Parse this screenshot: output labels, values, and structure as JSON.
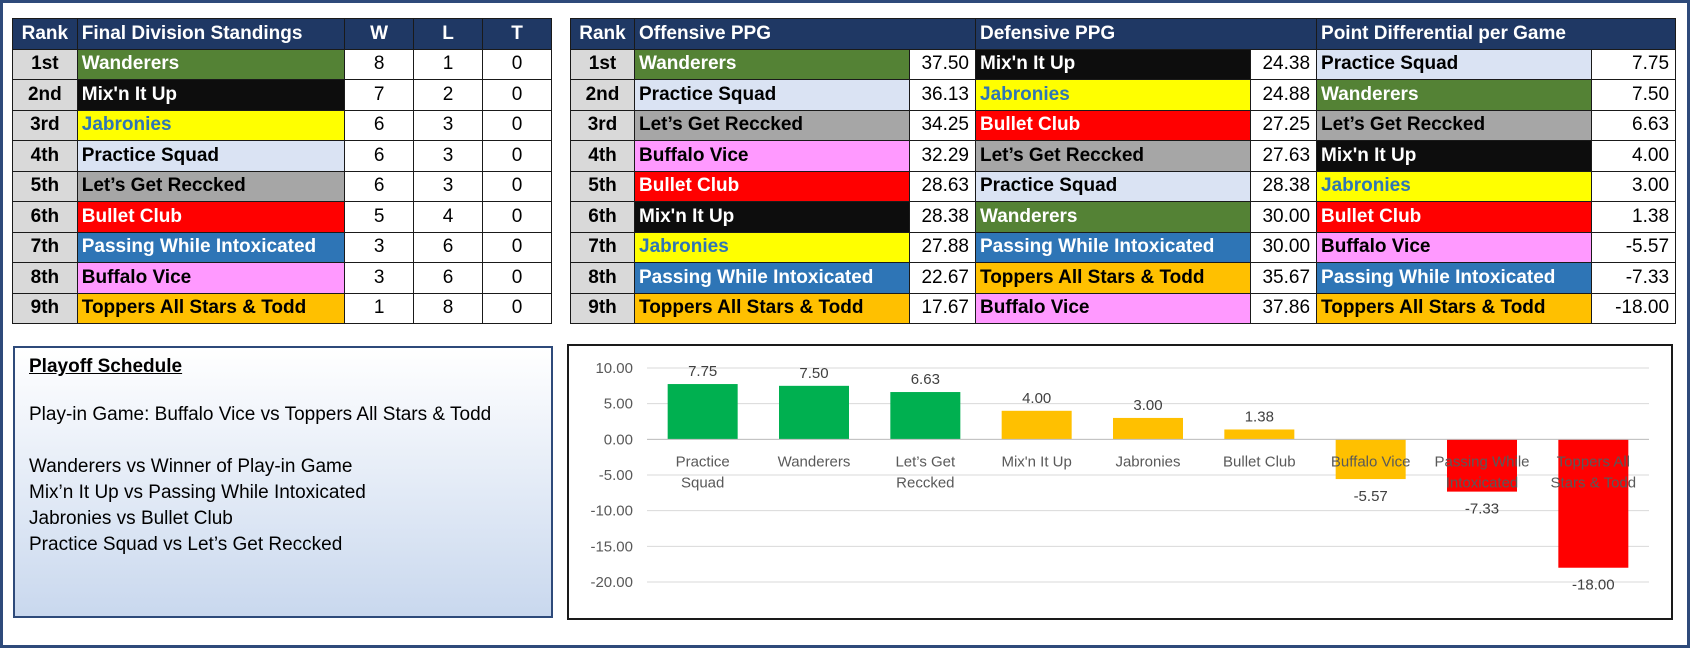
{
  "standings": {
    "headers": [
      "Rank",
      "Final Division Standings",
      "W",
      "L",
      "T"
    ],
    "rows": [
      {
        "rank": "1st",
        "team": "Wanderers",
        "w": "8",
        "l": "1",
        "t": "0",
        "bg": "#548235",
        "fg": "#ffffff"
      },
      {
        "rank": "2nd",
        "team": "Mix'n It Up",
        "w": "7",
        "l": "2",
        "t": "0",
        "bg": "#0d0d0d",
        "fg": "#ffffff"
      },
      {
        "rank": "3rd",
        "team": "Jabronies",
        "w": "6",
        "l": "3",
        "t": "0",
        "bg": "#ffff00",
        "fg": "#2e75b6"
      },
      {
        "rank": "4th",
        "team": "Practice Squad",
        "w": "6",
        "l": "3",
        "t": "0",
        "bg": "#dae3f3",
        "fg": "#000000"
      },
      {
        "rank": "5th",
        "team": "Let’s Get Reccked",
        "w": "6",
        "l": "3",
        "t": "0",
        "bg": "#a6a6a6",
        "fg": "#000000"
      },
      {
        "rank": "6th",
        "team": "Bullet Club",
        "w": "5",
        "l": "4",
        "t": "0",
        "bg": "#ff0000",
        "fg": "#ffffff"
      },
      {
        "rank": "7th",
        "team": "Passing While Intoxicated",
        "w": "3",
        "l": "6",
        "t": "0",
        "bg": "#2e75b6",
        "fg": "#ffffff"
      },
      {
        "rank": "8th",
        "team": "Buffalo Vice",
        "w": "3",
        "l": "6",
        "t": "0",
        "bg": "#ff99ff",
        "fg": "#000000"
      },
      {
        "rank": "9th",
        "team": "Toppers All Stars & Todd",
        "w": "1",
        "l": "8",
        "t": "0",
        "bg": "#ffc000",
        "fg": "#000000"
      }
    ]
  },
  "stats": {
    "headers": [
      "Rank",
      "Offensive PPG",
      "Defensive PPG",
      "Point Differential per Game"
    ],
    "rows": [
      {
        "rank": "1st",
        "off": {
          "team": "Wanderers",
          "val": "37.50",
          "bg": "#548235",
          "fg": "#ffffff"
        },
        "def": {
          "team": "Mix'n It Up",
          "val": "24.38",
          "bg": "#0d0d0d",
          "fg": "#ffffff"
        },
        "diff": {
          "team": "Practice Squad",
          "val": "7.75",
          "bg": "#dae3f3",
          "fg": "#000000"
        }
      },
      {
        "rank": "2nd",
        "off": {
          "team": "Practice Squad",
          "val": "36.13",
          "bg": "#dae3f3",
          "fg": "#000000"
        },
        "def": {
          "team": "Jabronies",
          "val": "24.88",
          "bg": "#ffff00",
          "fg": "#2e75b6"
        },
        "diff": {
          "team": "Wanderers",
          "val": "7.50",
          "bg": "#548235",
          "fg": "#ffffff"
        }
      },
      {
        "rank": "3rd",
        "off": {
          "team": "Let’s Get Reccked",
          "val": "34.25",
          "bg": "#a6a6a6",
          "fg": "#000000"
        },
        "def": {
          "team": "Bullet Club",
          "val": "27.25",
          "bg": "#ff0000",
          "fg": "#ffffff"
        },
        "diff": {
          "team": "Let’s Get Reccked",
          "val": "6.63",
          "bg": "#a6a6a6",
          "fg": "#000000"
        }
      },
      {
        "rank": "4th",
        "off": {
          "team": "Buffalo Vice",
          "val": "32.29",
          "bg": "#ff99ff",
          "fg": "#000000"
        },
        "def": {
          "team": "Let’s Get Reccked",
          "val": "27.63",
          "bg": "#a6a6a6",
          "fg": "#000000"
        },
        "diff": {
          "team": "Mix'n It Up",
          "val": "4.00",
          "bg": "#0d0d0d",
          "fg": "#ffffff"
        }
      },
      {
        "rank": "5th",
        "off": {
          "team": "Bullet Club",
          "val": "28.63",
          "bg": "#ff0000",
          "fg": "#ffffff"
        },
        "def": {
          "team": "Practice Squad",
          "val": "28.38",
          "bg": "#dae3f3",
          "fg": "#000000"
        },
        "diff": {
          "team": "Jabronies",
          "val": "3.00",
          "bg": "#ffff00",
          "fg": "#2e75b6"
        }
      },
      {
        "rank": "6th",
        "off": {
          "team": "Mix'n It Up",
          "val": "28.38",
          "bg": "#0d0d0d",
          "fg": "#ffffff"
        },
        "def": {
          "team": "Wanderers",
          "val": "30.00",
          "bg": "#548235",
          "fg": "#ffffff"
        },
        "diff": {
          "team": "Bullet Club",
          "val": "1.38",
          "bg": "#ff0000",
          "fg": "#ffffff"
        }
      },
      {
        "rank": "7th",
        "off": {
          "team": "Jabronies",
          "val": "27.88",
          "bg": "#ffff00",
          "fg": "#2e75b6"
        },
        "def": {
          "team": "Passing While Intoxicated",
          "val": "30.00",
          "bg": "#2e75b6",
          "fg": "#ffffff"
        },
        "diff": {
          "team": "Buffalo Vice",
          "val": "-5.57",
          "bg": "#ff99ff",
          "fg": "#000000"
        }
      },
      {
        "rank": "8th",
        "off": {
          "team": "Passing While Intoxicated",
          "val": "22.67",
          "bg": "#2e75b6",
          "fg": "#ffffff"
        },
        "def": {
          "team": "Toppers All Stars & Todd",
          "val": "35.67",
          "bg": "#ffc000",
          "fg": "#000000"
        },
        "diff": {
          "team": "Passing While Intoxicated",
          "val": "-7.33",
          "bg": "#2e75b6",
          "fg": "#ffffff"
        }
      },
      {
        "rank": "9th",
        "off": {
          "team": "Toppers All Stars & Todd",
          "val": "17.67",
          "bg": "#ffc000",
          "fg": "#000000"
        },
        "def": {
          "team": "Buffalo Vice",
          "val": "37.86",
          "bg": "#ff99ff",
          "fg": "#000000"
        },
        "diff": {
          "team": "Toppers All Stars & Todd",
          "val": "-18.00",
          "bg": "#ffc000",
          "fg": "#000000"
        }
      }
    ]
  },
  "schedule": {
    "title": "Playoff Schedule",
    "play_in": "Play-in Game: Buffalo Vice vs Toppers All Stars & Todd",
    "games": [
      "Wanderers vs Winner of Play-in Game",
      "Mix’n It Up vs Passing While Intoxicated",
      "Jabronies vs Bullet Club",
      "Practice Squad vs Let’s Get Reccked"
    ]
  },
  "chart_data": {
    "type": "bar",
    "title": "",
    "xlabel": "",
    "ylabel": "",
    "categories": [
      "Practice Squad",
      "Wanderers",
      "Let’s Get Reccked",
      "Mix'n It Up",
      "Jabronies",
      "Bullet Club",
      "Buffalo Vice",
      "Passing While Intoxicated",
      "Toppers All Stars & Todd"
    ],
    "values": [
      7.75,
      7.5,
      6.63,
      4.0,
      3.0,
      1.38,
      -5.57,
      -7.33,
      -18.0
    ],
    "value_labels": [
      "7.75",
      "7.50",
      "6.63",
      "4.00",
      "3.00",
      "1.38",
      "-5.57",
      "-7.33",
      "-18.00"
    ],
    "category_label_lines": [
      [
        "Practice",
        "Squad"
      ],
      [
        "Wanderers"
      ],
      [
        "Let’s Get",
        "Reccked"
      ],
      [
        "Mix'n It Up"
      ],
      [
        "Jabronies"
      ],
      [
        "Bullet Club"
      ],
      [
        "Buffalo Vice"
      ],
      [
        "Passing While",
        "Intoxicated"
      ],
      [
        "Toppers All",
        "Stars & Todd"
      ]
    ],
    "bar_colors": [
      "#00b050",
      "#00b050",
      "#00b050",
      "#ffc000",
      "#ffc000",
      "#ffc000",
      "#ffc000",
      "#ff0000",
      "#ff0000"
    ],
    "ylim": [
      -20,
      10
    ],
    "yticks": [
      "10.00",
      "5.00",
      "0.00",
      "-5.00",
      "-10.00",
      "-15.00",
      "-20.00"
    ],
    "grid": true,
    "legend": "none"
  }
}
